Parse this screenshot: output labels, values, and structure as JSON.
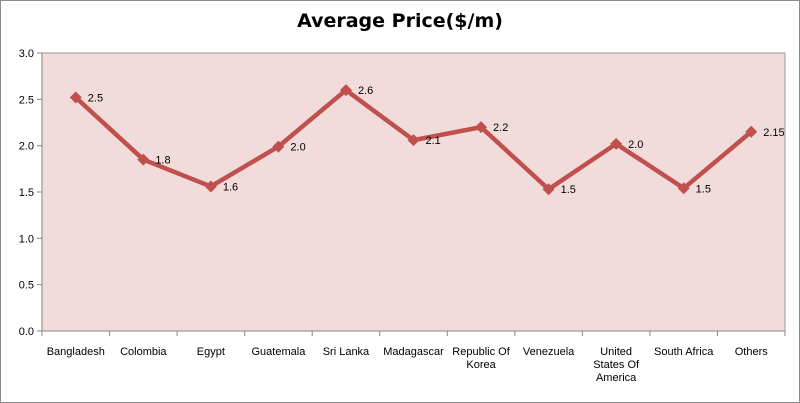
{
  "chart_data": {
    "type": "line",
    "title": "Average Price($/m)",
    "xlabel": "",
    "ylabel": "",
    "categories": [
      "Bangladesh",
      "Colombia",
      "Egypt",
      "Guatemala",
      "Sri Lanka",
      "Madagascar",
      "Republic Of Korea",
      "Venezuela",
      "United States Of America",
      "South Africa",
      "Others"
    ],
    "category_lines": [
      [
        "Bangladesh"
      ],
      [
        "Colombia"
      ],
      [
        "Egypt"
      ],
      [
        "Guatemala"
      ],
      [
        "Sri Lanka"
      ],
      [
        "Madagascar"
      ],
      [
        "Republic Of",
        "Korea"
      ],
      [
        "Venezuela"
      ],
      [
        "United",
        "States Of",
        "America"
      ],
      [
        "South Africa"
      ],
      [
        "Others"
      ]
    ],
    "values": [
      2.52,
      1.85,
      1.56,
      1.99,
      2.6,
      2.06,
      2.2,
      1.53,
      2.02,
      1.54,
      2.15
    ],
    "data_labels": [
      "2.5",
      "1.8",
      "1.6",
      "2.0",
      "2.6",
      "2.1",
      "2.2",
      "1.5",
      "2.0",
      "1.5",
      "2.15"
    ],
    "ylim": [
      0,
      3
    ],
    "yticks": [
      "0.0",
      "0.5",
      "1.0",
      "1.5",
      "2.0",
      "2.5",
      "3.0"
    ],
    "grid": false,
    "legend": "none",
    "colors": {
      "line": "#c0504d",
      "plot_bg": "#f2dcdb"
    }
  }
}
